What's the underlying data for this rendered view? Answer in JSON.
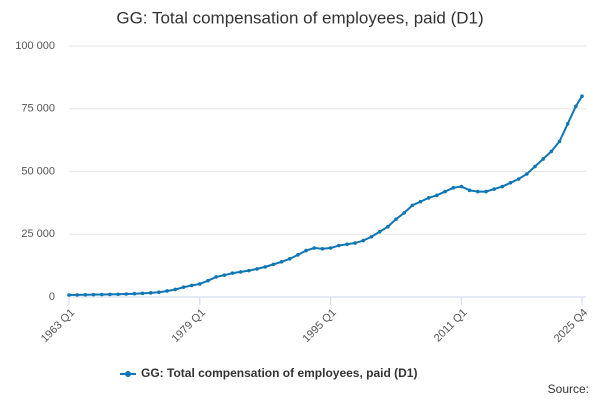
{
  "chart_data": {
    "type": "line",
    "title": "GG: Total compensation of employees, paid (D1)",
    "source": "Source:",
    "x": [
      1963,
      1964,
      1965,
      1966,
      1967,
      1968,
      1969,
      1970,
      1971,
      1972,
      1973,
      1974,
      1975,
      1976,
      1977,
      1978,
      1979,
      1980,
      1981,
      1982,
      1983,
      1984,
      1985,
      1986,
      1987,
      1988,
      1989,
      1990,
      1991,
      1992,
      1993,
      1994,
      1995,
      1996,
      1997,
      1998,
      1999,
      2000,
      2001,
      2002,
      2003,
      2004,
      2005,
      2006,
      2007,
      2008,
      2009,
      2010,
      2011,
      2012,
      2013,
      2014,
      2015,
      2016,
      2017,
      2018,
      2019,
      2020,
      2021,
      2022,
      2023,
      2024,
      2025,
      2025.75
    ],
    "series": [
      {
        "name": "GG: Total compensation of employees, paid (D1)",
        "color": "#0f76b4",
        "values": [
          800,
          850,
          900,
          950,
          1000,
          1050,
          1100,
          1200,
          1300,
          1450,
          1650,
          1900,
          2400,
          3000,
          3900,
          4600,
          5200,
          6500,
          8000,
          8700,
          9500,
          10000,
          10500,
          11200,
          12000,
          13000,
          14000,
          15200,
          16800,
          18500,
          19500,
          19200,
          19500,
          20500,
          21000,
          21500,
          22500,
          24000,
          26000,
          28000,
          31000,
          33500,
          36500,
          38000,
          39500,
          40500,
          42000,
          43500,
          44000,
          42500,
          42000,
          42000,
          43000,
          44000,
          45500,
          47000,
          49000,
          52000,
          55000,
          58000,
          62000,
          69000,
          76000,
          80000
        ]
      }
    ],
    "xlim": [
      1963,
      2025.75
    ],
    "xticks": [
      {
        "value": 1963,
        "label": "1963 Q1"
      },
      {
        "value": 1979,
        "label": "1979 Q1"
      },
      {
        "value": 1995,
        "label": "1995 Q1"
      },
      {
        "value": 2011,
        "label": "2011 Q1"
      },
      {
        "value": 2025.75,
        "label": "2025 Q4"
      }
    ],
    "ylim": [
      0,
      100000
    ],
    "yticks": [
      0,
      {
        "value": 25000,
        "label": "25 000"
      },
      {
        "value": 50000,
        "label": "50 000"
      },
      {
        "value": 75000,
        "label": "75 000"
      },
      {
        "value": 100000,
        "label": "100 000"
      }
    ],
    "grid": true,
    "legend": "bottom"
  }
}
